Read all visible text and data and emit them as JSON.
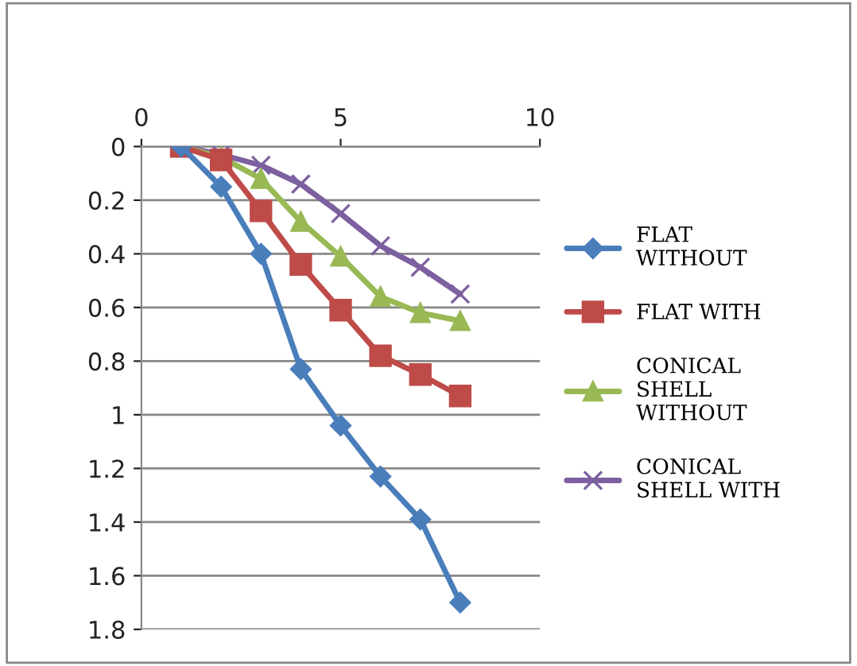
{
  "chart_data": {
    "type": "line",
    "x": [
      1,
      2,
      3,
      4,
      5,
      6,
      7,
      8
    ],
    "series": [
      {
        "name": "FLAT WITHOUT",
        "color": "#4a7ebb",
        "marker": "diamond",
        "values": [
          0,
          0.15,
          0.4,
          0.83,
          1.04,
          1.23,
          1.39,
          1.7
        ]
      },
      {
        "name": "FLAT WITH",
        "color": "#be4b48",
        "marker": "square",
        "values": [
          0,
          0.05,
          0.24,
          0.44,
          0.61,
          0.78,
          0.85,
          0.93
        ]
      },
      {
        "name": "CONICAL SHELL WITHOUT",
        "color": "#98b954",
        "marker": "triangle",
        "values": [
          0,
          0.04,
          0.12,
          0.28,
          0.41,
          0.56,
          0.62,
          0.65
        ]
      },
      {
        "name": "CONICAL SHELL WITH",
        "color": "#7d60a0",
        "marker": "cross",
        "values": [
          0,
          0.03,
          0.07,
          0.14,
          0.25,
          0.37,
          0.45,
          0.55
        ]
      }
    ],
    "xlim": [
      0,
      10
    ],
    "xticks": [
      0,
      5,
      10
    ],
    "ylim": [
      1.8,
      0
    ],
    "yticks": [
      0,
      0.2,
      0.4,
      0.6,
      0.8,
      1,
      1.2,
      1.4,
      1.6,
      1.8
    ],
    "grid": "y",
    "legend": "right",
    "line_style": "solid"
  }
}
